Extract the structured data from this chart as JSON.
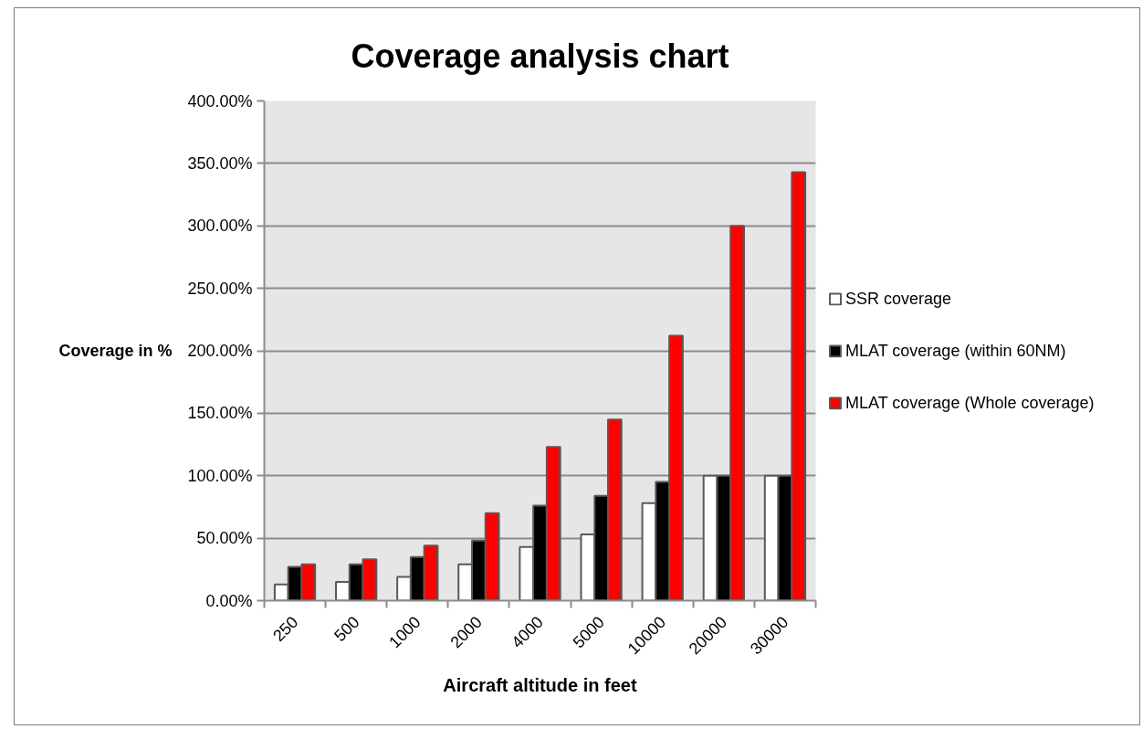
{
  "chart_data": {
    "type": "bar",
    "title": "Coverage analysis chart",
    "xlabel": "Aircraft altitude in feet",
    "ylabel": "Coverage in %",
    "categories": [
      "250",
      "500",
      "1000",
      "2000",
      "4000",
      "5000",
      "10000",
      "20000",
      "30000"
    ],
    "series": [
      {
        "name": "SSR coverage",
        "color": "#ffffff",
        "values": [
          13,
          15,
          19,
          29,
          43,
          53,
          78,
          100,
          100
        ]
      },
      {
        "name": "MLAT coverage (within 60NM)",
        "color": "#000000",
        "values": [
          27,
          29,
          35,
          48,
          76,
          84,
          95,
          100,
          100
        ]
      },
      {
        "name": "MLAT coverage (Whole coverage)",
        "color": "#ff0000",
        "values": [
          29,
          33,
          44,
          70,
          123,
          145,
          212,
          300,
          343
        ]
      }
    ],
    "ylim": [
      0,
      400
    ],
    "yticks": [
      {
        "value": 0,
        "label": "0.00%"
      },
      {
        "value": 50,
        "label": "50.00%"
      },
      {
        "value": 100,
        "label": "100.00%"
      },
      {
        "value": 150,
        "label": "150.00%"
      },
      {
        "value": 200,
        "label": "200.00%"
      },
      {
        "value": 250,
        "label": "250.00%"
      },
      {
        "value": 300,
        "label": "300.00%"
      },
      {
        "value": 350,
        "label": "350.00%"
      },
      {
        "value": 400,
        "label": "400.00%"
      }
    ],
    "grid": "y",
    "legend": "right"
  }
}
